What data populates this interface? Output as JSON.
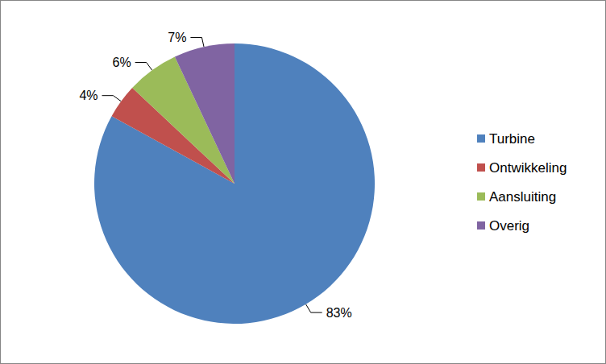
{
  "chart_data": {
    "type": "pie",
    "categories": [
      "Turbine",
      "Ontwikkeling",
      "Aansluiting",
      "Overig"
    ],
    "values": [
      83,
      4,
      6,
      7
    ],
    "value_labels": [
      "83%",
      "4%",
      "6%",
      "7%"
    ],
    "colors": [
      "#4f81bd",
      "#c0504d",
      "#9bbb59",
      "#8064a2"
    ],
    "data_labels": true,
    "legend": "right"
  }
}
